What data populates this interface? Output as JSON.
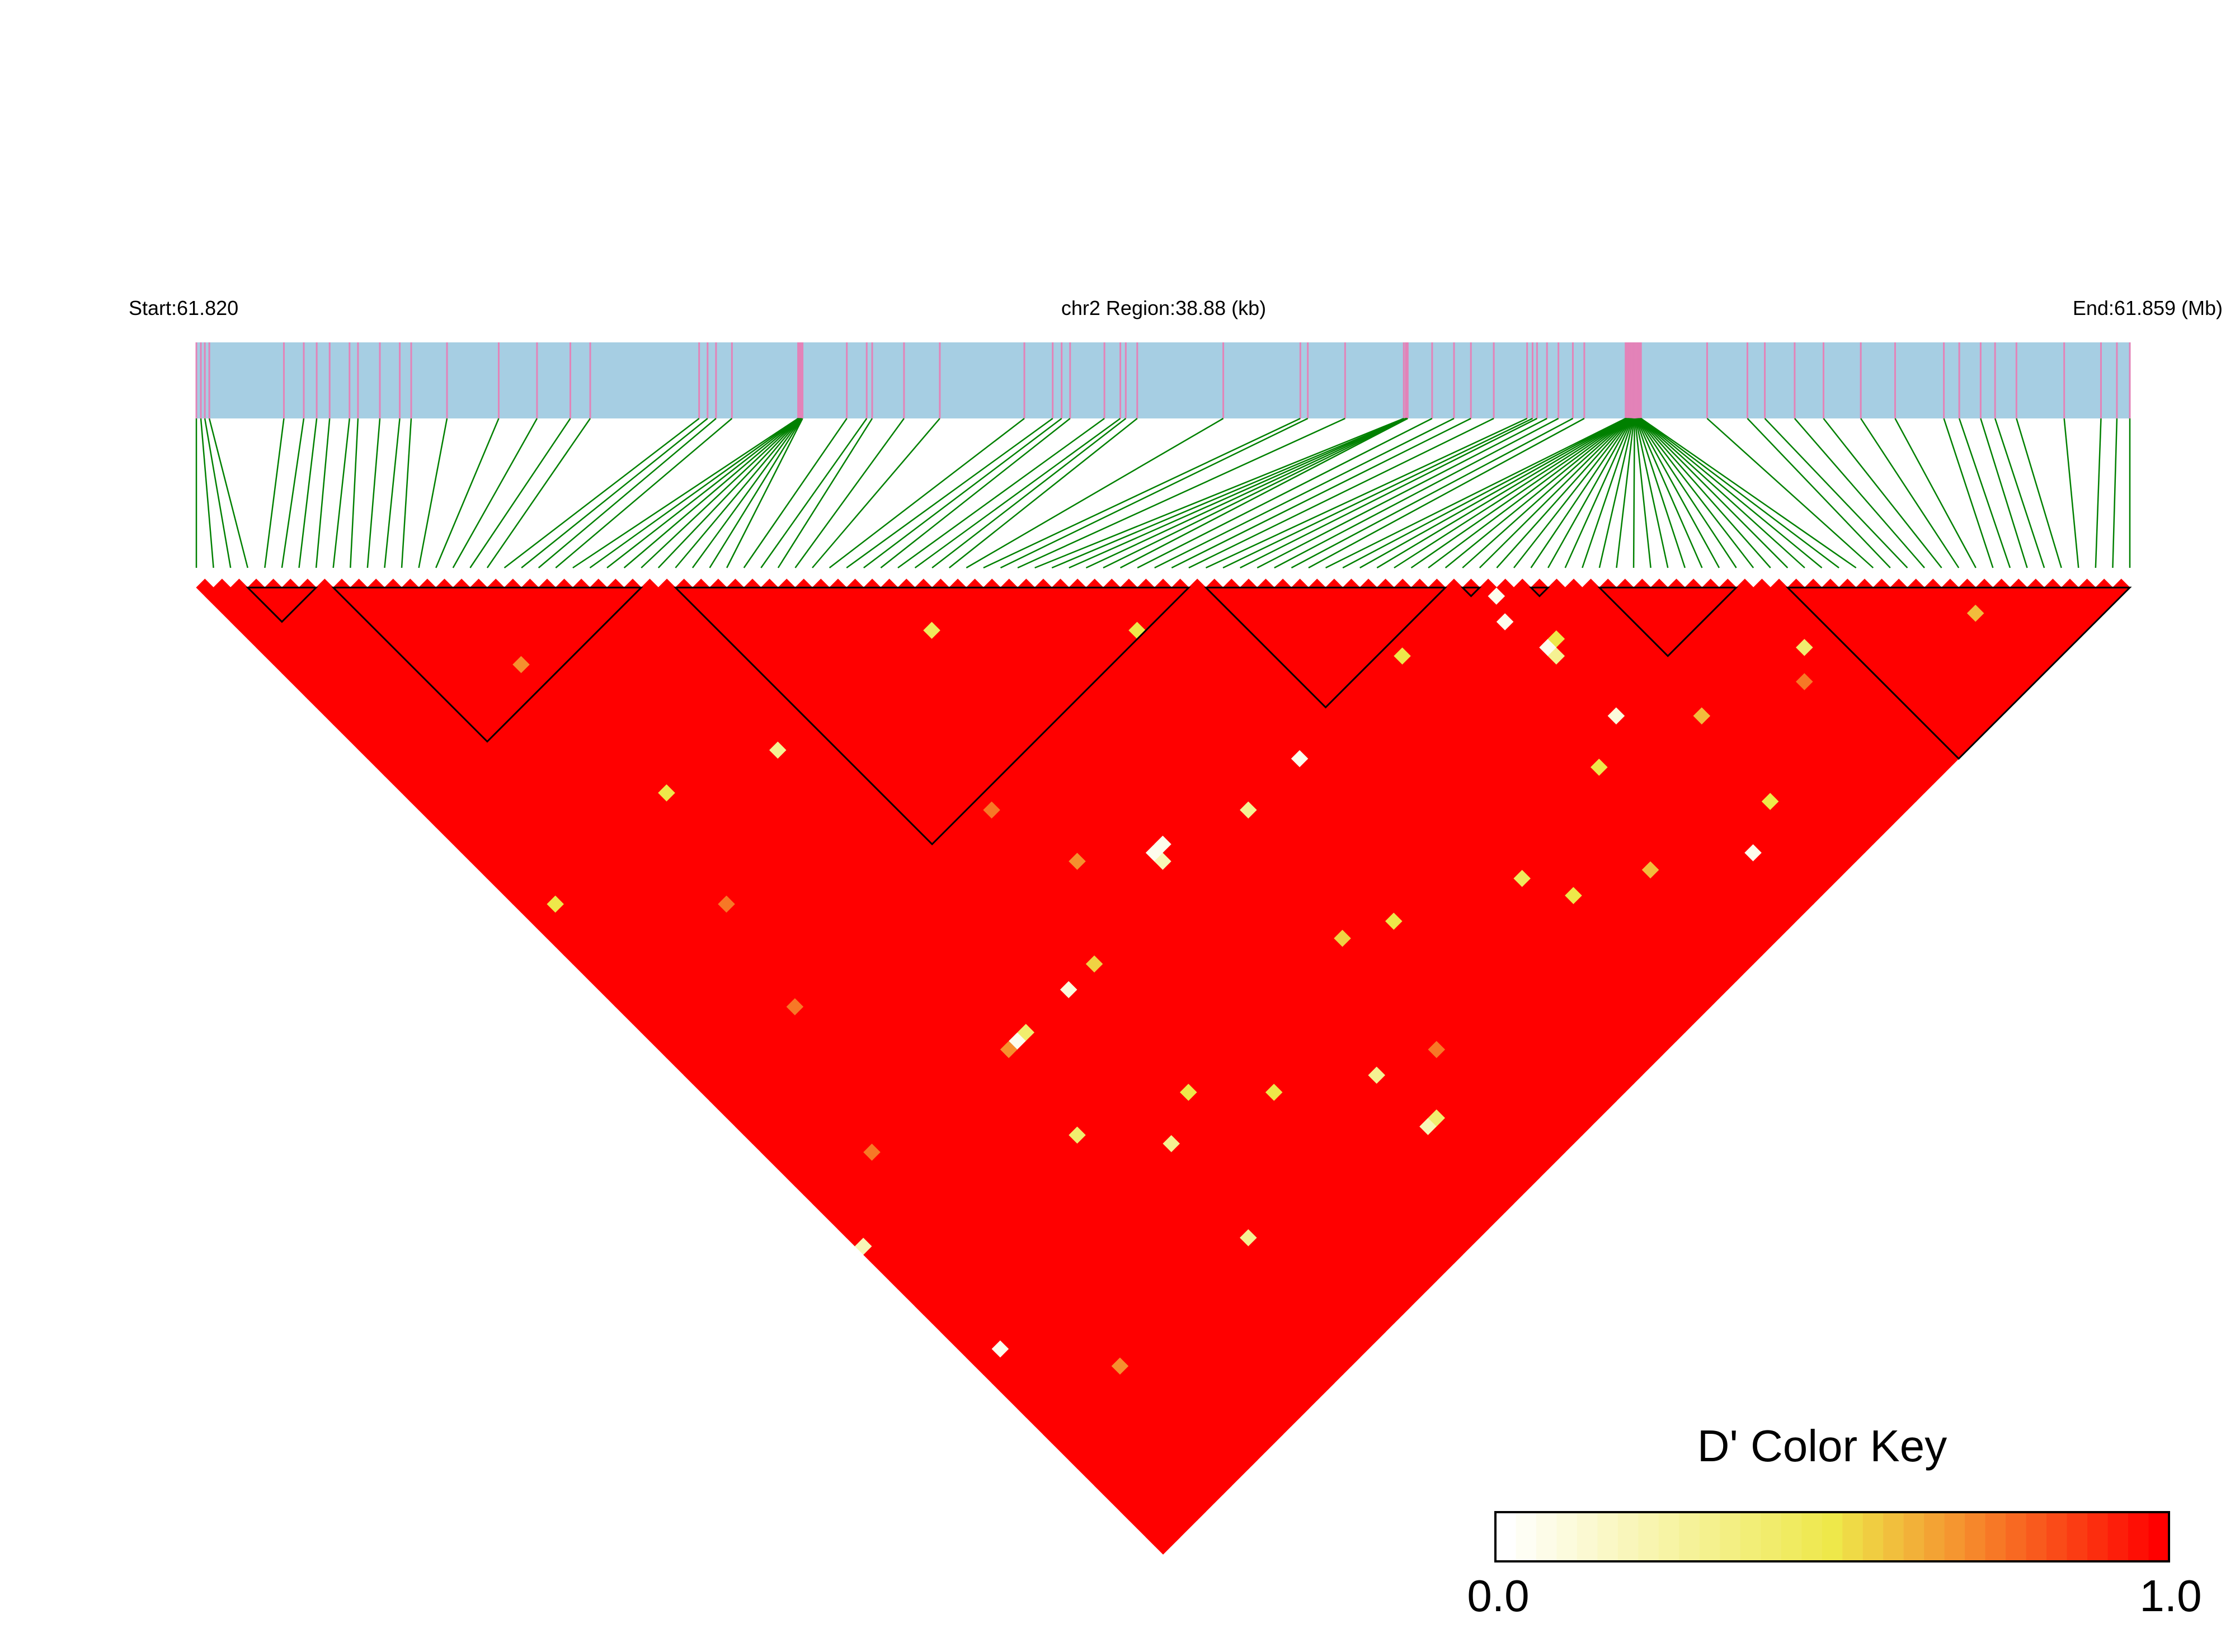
{
  "header": {
    "start_label": "Start:61.820",
    "region_label": "chr2 Region:38.88 (kb)",
    "end_label": "End:61.859 (Mb)"
  },
  "colors": {
    "gene_bar": "#a6cee3",
    "snp_tick": "#e383b8",
    "connector": "#008000",
    "block_outline": "#000000",
    "max_ld": "#ff0000"
  },
  "chart_data": {
    "type": "heatmap",
    "subtype": "LD triangle (D')",
    "chromosome": "chr2",
    "start_mb": 61.82,
    "end_mb": 61.859,
    "region_kb": 38.88,
    "snp_offsets_kb": [
      0,
      0.09,
      0.17,
      0.26,
      1.76,
      2.16,
      2.42,
      2.68,
      3.08,
      3.25,
      3.69,
      4.09,
      4.32,
      5.04,
      6.08,
      6.85,
      7.52,
      7.92,
      10.11,
      10.28,
      10.45,
      10.77,
      12.1,
      12.11,
      12.12,
      12.13,
      12.14,
      12.15,
      12.16,
      12.17,
      12.18,
      12.19,
      13.08,
      13.48,
      13.59,
      14.23,
      14.95,
      16.65,
      17.22,
      17.4,
      17.57,
      18.26,
      18.58,
      18.69,
      18.92,
      20.65,
      22.2,
      22.35,
      23.1,
      24.28,
      24.32,
      24.33,
      24.34,
      24.35,
      24.36,
      24.85,
      25.29,
      25.63,
      26.09,
      26.76,
      26.87,
      26.96,
      27.16,
      27.39,
      27.68,
      27.91,
      28.74,
      28.75,
      28.76,
      28.77,
      28.78,
      28.79,
      28.8,
      28.81,
      28.82,
      28.83,
      28.84,
      28.85,
      28.86,
      28.87,
      28.88,
      28.89,
      28.9,
      28.91,
      28.92,
      28.93,
      28.94,
      28.95,
      28.96,
      28.97,
      28.98,
      28.99,
      29.0,
      29.01,
      29.02,
      29.03,
      29.04,
      29.05,
      30.38,
      31.19,
      31.54,
      32.14,
      32.72,
      33.47,
      34.16,
      35.14,
      35.45,
      35.88,
      36.17,
      36.6,
      37.56,
      38.3,
      38.62,
      38.88
    ],
    "default_dprime": 1.0,
    "low_dprime_cells": [
      {
        "i": 21,
        "j": 75,
        "v": 0.05
      },
      {
        "i": 40,
        "j": 72,
        "v": 0.05
      },
      {
        "i": 75,
        "j": 83,
        "v": 0.05
      },
      {
        "i": 40,
        "j": 104,
        "v": 0.2
      },
      {
        "i": 40,
        "j": 98,
        "v": 0.3
      },
      {
        "i": 75,
        "j": 91,
        "v": 0.1
      },
      {
        "i": 54,
        "j": 75,
        "v": 0.05
      },
      {
        "i": 27,
        "j": 75,
        "v": 0.1
      },
      {
        "i": 40,
        "j": 46,
        "v": 0.45
      },
      {
        "i": 24,
        "j": 44,
        "v": 0.3
      },
      {
        "i": 15,
        "j": 40,
        "v": 0.5
      },
      {
        "i": 2,
        "j": 40,
        "v": 0.5
      },
      {
        "i": 75,
        "j": 77,
        "v": 0.05
      },
      {
        "i": 75,
        "j": 107,
        "v": 0.05
      },
      {
        "i": 79,
        "j": 105,
        "v": 0.5
      },
      {
        "i": 102,
        "j": 106,
        "v": 0.6
      },
      {
        "i": 23,
        "j": 100,
        "v": 0.3
      },
      {
        "i": 0,
        "j": 78,
        "v": 0.2
      },
      {
        "i": 2,
        "j": 92,
        "v": 0.05
      },
      {
        "i": 71,
        "j": 93,
        "v": 0.5
      },
      {
        "i": 46,
        "j": 88,
        "v": 0.55
      },
      {
        "i": 74,
        "j": 79,
        "v": 0.05
      },
      {
        "i": 24,
        "j": 90,
        "v": 0.3
      },
      {
        "i": 19,
        "j": 84,
        "v": 0.4
      },
      {
        "i": 6,
        "j": 73,
        "v": 0.75
      },
      {
        "i": 22,
        "j": 75,
        "v": 0.4
      },
      {
        "i": 40,
        "j": 73,
        "v": 0.2
      },
      {
        "i": 41,
        "j": 72,
        "v": 0.05
      },
      {
        "i": 20,
        "j": 75,
        "v": 0.7
      },
      {
        "i": 75,
        "j": 84,
        "v": 0.3
      },
      {
        "i": 76,
        "j": 83,
        "v": 0.5
      },
      {
        "i": 41,
        "j": 104,
        "v": 0.4
      },
      {
        "i": 30,
        "j": 75,
        "v": 0.55
      },
      {
        "i": 33,
        "j": 60,
        "v": 0.75
      },
      {
        "i": 12,
        "j": 50,
        "v": 0.75
      },
      {
        "i": 50,
        "j": 90,
        "v": 0.5
      },
      {
        "i": 60,
        "j": 95,
        "v": 0.45
      },
      {
        "i": 62,
        "j": 99,
        "v": 0.5
      },
      {
        "i": 10,
        "j": 60,
        "v": 0.75
      },
      {
        "i": 14,
        "j": 24,
        "v": 0.7
      },
      {
        "i": 52,
        "j": 58,
        "v": 0.5
      },
      {
        "i": 88,
        "j": 100,
        "v": 0.75
      },
      {
        "i": 90,
        "j": 98,
        "v": 0.4
      },
      {
        "i": 80,
        "j": 96,
        "v": 0.6
      },
      {
        "i": 35,
        "j": 68,
        "v": 0.7
      },
      {
        "i": 28,
        "j": 88,
        "v": 0.5
      },
      {
        "i": 45,
        "j": 100,
        "v": 0.75
      },
      {
        "i": 8,
        "j": 100,
        "v": 0.7
      },
      {
        "i": 48,
        "j": 75,
        "v": 0.3
      },
      {
        "i": 66,
        "j": 75,
        "v": 0.5
      },
      {
        "i": 68,
        "j": 102,
        "v": 0.6
      },
      {
        "i": 33,
        "j": 93,
        "v": 0.5
      }
    ],
    "ld_blocks": [
      {
        "start": 3,
        "end": 7
      },
      {
        "start": 8,
        "end": 26
      },
      {
        "start": 28,
        "end": 58
      },
      {
        "start": 59,
        "end": 73
      },
      {
        "start": 74,
        "end": 75
      },
      {
        "start": 78,
        "end": 79
      },
      {
        "start": 82,
        "end": 90
      },
      {
        "start": 93,
        "end": 113
      }
    ],
    "color_key": {
      "title": "D' Color Key",
      "min_label": "0.0",
      "max_label": "1.0",
      "range": [
        0,
        1
      ],
      "stops": [
        {
          "v": 0.0,
          "c": "#ffffff"
        },
        {
          "v": 0.5,
          "c": "#eee84a"
        },
        {
          "v": 0.7,
          "c": "#f5902e"
        },
        {
          "v": 1.0,
          "c": "#ff0000"
        }
      ],
      "steps": 33
    }
  }
}
